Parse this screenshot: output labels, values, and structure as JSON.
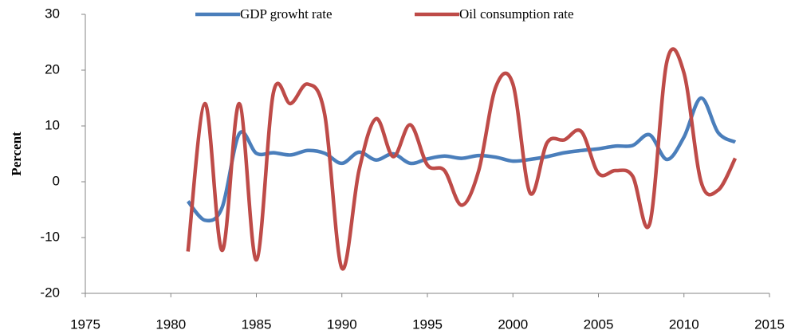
{
  "chart_data": {
    "type": "line",
    "y_label": "Percent",
    "x": [
      1981,
      1982,
      1983,
      1984,
      1985,
      1986,
      1987,
      1988,
      1989,
      1990,
      1991,
      1992,
      1993,
      1994,
      1995,
      1996,
      1997,
      1998,
      1999,
      2000,
      2001,
      2002,
      2003,
      2004,
      2005,
      2006,
      2007,
      2008,
      2009,
      2010,
      2011,
      2012,
      2013
    ],
    "series": [
      {
        "name": "GDP growht rate",
        "color": "#4a7ebb",
        "values": [
          -3.5,
          -6.9,
          -4.6,
          8.6,
          5.1,
          5.2,
          4.8,
          5.6,
          5.1,
          3.3,
          5.3,
          3.9,
          5.0,
          3.3,
          4.1,
          4.6,
          4.2,
          4.7,
          4.4,
          3.7,
          4.0,
          4.5,
          5.2,
          5.6,
          5.9,
          6.4,
          6.5,
          8.4,
          4.0,
          8.0,
          15.0,
          8.8,
          7.1
        ]
      },
      {
        "name": "Oil consumption rate",
        "color": "#be4b48",
        "values": [
          -12.5,
          14,
          -12.3,
          14,
          -14,
          16,
          14,
          17.5,
          12,
          -15.5,
          2,
          11.3,
          4.5,
          10.2,
          3,
          2,
          -4.2,
          2,
          17,
          17.5,
          -2,
          7,
          7.5,
          9,
          1.5,
          2,
          1,
          -7.5,
          21.5,
          19.5,
          0,
          -1.5,
          4.2
        ]
      }
    ],
    "xlim": [
      1975,
      2015
    ],
    "xticks": [
      1975,
      1980,
      1985,
      1990,
      1995,
      2000,
      2005,
      2010,
      2015
    ],
    "ylim": [
      -20,
      30
    ],
    "yticks": [
      -20,
      -10,
      0,
      10,
      20,
      30
    ],
    "grid": false,
    "legend": "top",
    "smooth": true
  }
}
